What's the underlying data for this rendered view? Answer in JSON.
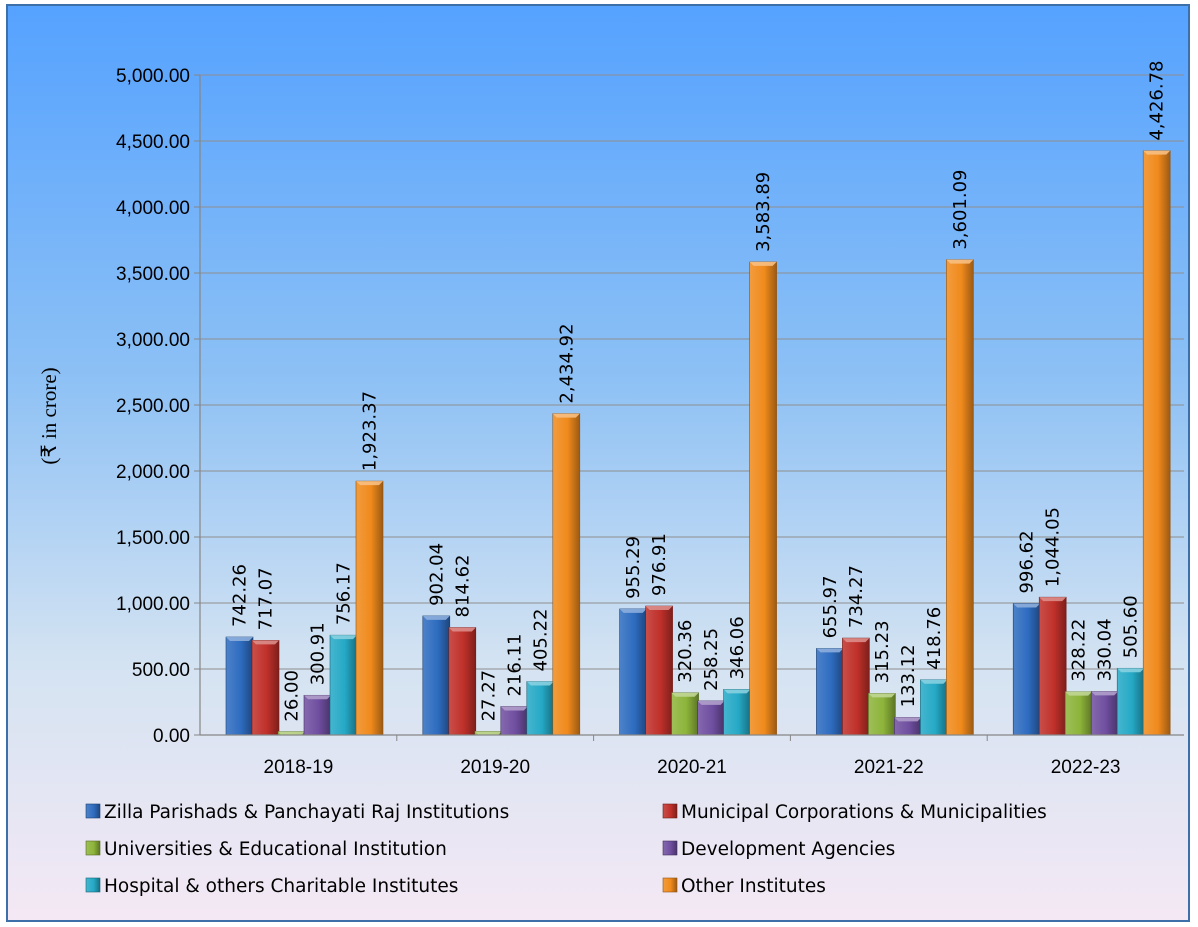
{
  "chart_data": {
    "type": "bar",
    "title": "",
    "xlabel": "",
    "ylabel": "(₹ in crore)",
    "ylim": [
      0,
      5000
    ],
    "yticks": [
      "0.00",
      "500.00",
      "1,000.00",
      "1,500.00",
      "2,000.00",
      "2,500.00",
      "3,000.00",
      "3,500.00",
      "4,000.00",
      "4,500.00",
      "5,000.00"
    ],
    "grid": true,
    "legend_position": "bottom",
    "categories": [
      "2018-19",
      "2019-20",
      "2020-21",
      "2021-22",
      "2022-23"
    ],
    "series": [
      {
        "name": "Zilla Parishads & Panchayati Raj Institutions",
        "color": "#2e6cc0",
        "values": [
          742.26,
          902.04,
          955.29,
          655.97,
          996.62
        ],
        "labels": [
          "742.26",
          "902.04",
          "955.29",
          "655.97",
          "996.62"
        ]
      },
      {
        "name": "Municipal Corporations & Municipalities",
        "color": "#c0302a",
        "values": [
          717.07,
          814.62,
          976.91,
          734.27,
          1044.05
        ],
        "labels": [
          "717.07",
          "814.62",
          "976.91",
          "734.27",
          "1,044.05"
        ]
      },
      {
        "name": "Universities & Educational Institution",
        "color": "#8db43a",
        "values": [
          26.0,
          27.27,
          320.36,
          315.23,
          328.22
        ],
        "labels": [
          "26.00",
          "27.27",
          "320.36",
          "315.23",
          "328.22"
        ]
      },
      {
        "name": "Development Agencies",
        "color": "#6f4ea0",
        "values": [
          300.91,
          216.11,
          258.25,
          133.12,
          330.04
        ],
        "labels": [
          "300.91",
          "216.11",
          "258.25",
          "133.12",
          "330.04"
        ]
      },
      {
        "name": "Hospital & others Charitable Institutes",
        "color": "#25a9c6",
        "values": [
          756.17,
          405.22,
          346.06,
          418.76,
          505.6
        ],
        "labels": [
          "756.17",
          "405.22",
          "346.06",
          "418.76",
          "505.60"
        ]
      },
      {
        "name": "Other Institutes",
        "color": "#f08a1c",
        "values": [
          1923.37,
          2434.92,
          3583.89,
          3601.09,
          4426.78
        ],
        "labels": [
          "1,923.37",
          "2,434.92",
          "3,583.89",
          "3,601.09",
          "4,426.78"
        ]
      }
    ]
  }
}
